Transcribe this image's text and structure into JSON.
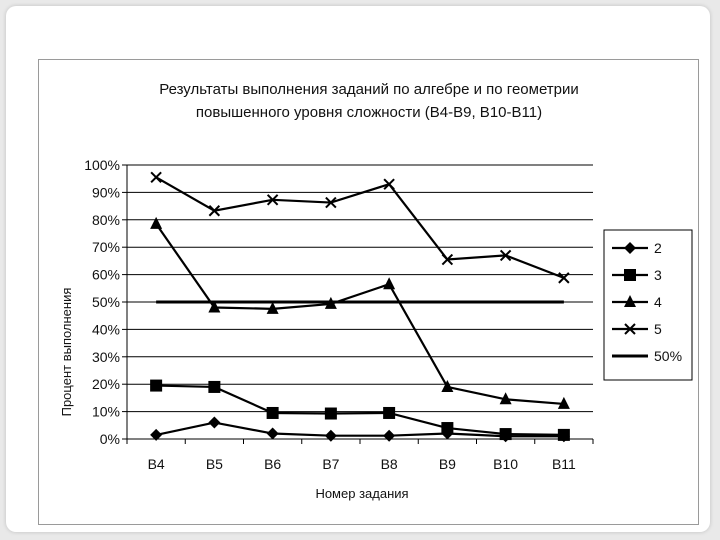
{
  "chart_data": {
    "type": "line",
    "title_line1": "Результаты выполнения заданий по алгебре и по геометрии",
    "title_line2": "повышенного уровня сложности (В4-В9, В10-В11)",
    "xlabel": "Номер задания",
    "ylabel": "Процент выполнения",
    "categories": [
      "B4",
      "B5",
      "B6",
      "B7",
      "B8",
      "B9",
      "B10",
      "B11"
    ],
    "yticks": [
      "0%",
      "10%",
      "20%",
      "30%",
      "40%",
      "50%",
      "60%",
      "70%",
      "80%",
      "90%",
      "100%"
    ],
    "ylim": [
      0,
      100
    ],
    "grid": "horizontal",
    "legend_position": "right",
    "series": [
      {
        "name": "2",
        "marker": "diamond",
        "values": [
          1.5,
          6,
          2,
          1.2,
          1.2,
          2,
          1,
          1
        ]
      },
      {
        "name": "3",
        "marker": "square",
        "values": [
          19.5,
          19,
          9.5,
          9.3,
          9.5,
          4,
          1.8,
          1.5
        ]
      },
      {
        "name": "4",
        "marker": "triangle",
        "values": [
          78.5,
          48,
          47.5,
          49.3,
          56.5,
          19,
          14.5,
          12.8
        ]
      },
      {
        "name": "5",
        "marker": "x",
        "values": [
          95.5,
          83.3,
          87.3,
          86.3,
          93,
          65.5,
          67,
          58.8
        ]
      },
      {
        "name": "50%",
        "marker": "none",
        "values": [
          50,
          50,
          50,
          50,
          50,
          50,
          50,
          50
        ]
      }
    ],
    "line_color": "#000000"
  }
}
